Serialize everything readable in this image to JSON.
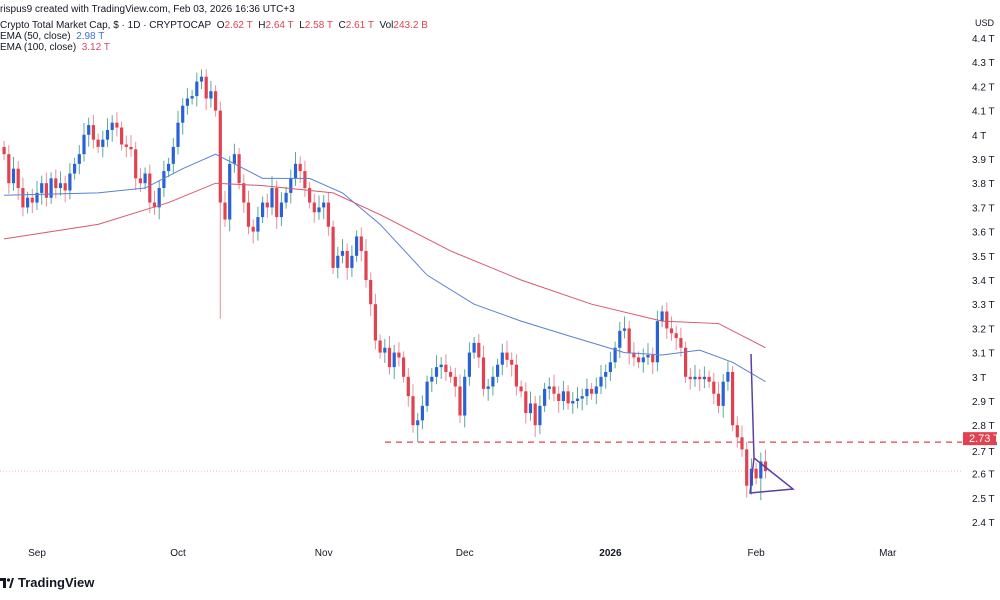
{
  "header": {
    "created": "rispus9 created with TradingView.com, Feb 03, 2026 16:36 UTC+3",
    "symbol": "Crypto Total Market Cap, $ · 1D · CRYPTOCAP",
    "o_label": "O",
    "o": "2.62 T",
    "h_label": "H",
    "h": "2.64 T",
    "l_label": "L",
    "l": "2.58 T",
    "c_label": "C",
    "c": "2.61 T",
    "vol_label": "Vol",
    "vol": "243.2 B",
    "ema50_label": "EMA (50, close)",
    "ema50": "2.98 T",
    "ema100_label": "EMA (100, close)",
    "ema100": "3.12 T"
  },
  "axis": {
    "currency": "USD",
    "y_ticks": [
      "4.4 T",
      "4.3 T",
      "4.2 T",
      "4.1 T",
      "4 T",
      "3.9 T",
      "3.8 T",
      "3.7 T",
      "3.6 T",
      "3.5 T",
      "3.4 T",
      "3.3 T",
      "3.2 T",
      "3.1 T",
      "3 T",
      "2.9 T",
      "2.8 T",
      "2.7 T",
      "2.6 T",
      "2.5 T",
      "2.4 T"
    ],
    "y_values": [
      4.4,
      4.3,
      4.2,
      4.1,
      4.0,
      3.9,
      3.8,
      3.7,
      3.6,
      3.5,
      3.4,
      3.3,
      3.2,
      3.1,
      3.0,
      2.9,
      2.8,
      2.7,
      2.6,
      2.5,
      2.4
    ],
    "x_ticks": [
      {
        "label": "Sep",
        "index": 7,
        "bold": false
      },
      {
        "label": "Oct",
        "index": 37,
        "bold": false
      },
      {
        "label": "Nov",
        "index": 68,
        "bold": false
      },
      {
        "label": "Dec",
        "index": 98,
        "bold": false
      },
      {
        "label": "2026",
        "index": 129,
        "bold": true
      },
      {
        "label": "Feb",
        "index": 160,
        "bold": false
      },
      {
        "label": "Mar",
        "index": 188,
        "bold": false
      }
    ]
  },
  "chart_data": {
    "type": "candlestick",
    "unit": "T USD",
    "ylim": [
      2.4,
      4.4
    ],
    "closes": [
      3.92,
      3.8,
      3.86,
      3.78,
      3.7,
      3.74,
      3.72,
      3.76,
      3.8,
      3.74,
      3.82,
      3.78,
      3.8,
      3.77,
      3.84,
      3.88,
      3.92,
      4.0,
      4.04,
      3.98,
      3.95,
      3.98,
      4.02,
      4.05,
      4.03,
      3.96,
      3.95,
      3.94,
      3.82,
      3.8,
      3.84,
      3.72,
      3.7,
      3.78,
      3.85,
      3.88,
      3.95,
      4.05,
      4.12,
      4.15,
      4.16,
      4.22,
      4.24,
      4.15,
      4.18,
      4.1,
      3.72,
      3.65,
      3.88,
      3.92,
      3.8,
      3.72,
      3.62,
      3.6,
      3.66,
      3.72,
      3.7,
      3.78,
      3.66,
      3.72,
      3.76,
      3.82,
      3.88,
      3.85,
      3.78,
      3.72,
      3.68,
      3.7,
      3.72,
      3.62,
      3.45,
      3.5,
      3.52,
      3.45,
      3.5,
      3.58,
      3.52,
      3.4,
      3.3,
      3.15,
      3.1,
      3.12,
      3.04,
      3.1,
      3.08,
      3.0,
      2.92,
      2.8,
      2.82,
      2.88,
      2.98,
      3.0,
      3.04,
      3.05,
      3.02,
      3.0,
      2.96,
      2.84,
      3.0,
      3.1,
      3.14,
      3.08,
      2.95,
      2.96,
      3.0,
      3.05,
      3.1,
      3.07,
      3.05,
      2.96,
      2.94,
      2.85,
      2.89,
      2.8,
      2.88,
      2.95,
      2.96,
      2.93,
      2.9,
      2.94,
      2.89,
      2.9,
      2.91,
      2.92,
      2.95,
      2.93,
      2.96,
      3.0,
      3.02,
      3.06,
      3.12,
      3.19,
      3.2,
      3.1,
      3.08,
      3.06,
      3.08,
      3.09,
      3.06,
      3.23,
      3.27,
      3.2,
      3.18,
      3.16,
      3.12,
      3.0,
      2.99,
      3.0,
      2.99,
      3.0,
      2.98,
      2.93,
      2.88,
      2.98,
      3.02,
      2.8,
      2.75,
      2.7,
      2.55,
      2.62,
      2.58,
      2.65,
      2.61
    ],
    "first_open": 3.95,
    "notable_wicks": [
      {
        "index": 42,
        "high": 4.27
      },
      {
        "index": 46,
        "low": 3.24
      },
      {
        "index": 88,
        "low": 2.73
      },
      {
        "index": 161,
        "low": 2.49
      }
    ],
    "series": [
      {
        "name": "EMA (50, close)",
        "color": "#5b7fd6",
        "points": [
          [
            0,
            3.75
          ],
          [
            20,
            3.76
          ],
          [
            30,
            3.78
          ],
          [
            38,
            3.86
          ],
          [
            45,
            3.92
          ],
          [
            55,
            3.82
          ],
          [
            65,
            3.82
          ],
          [
            72,
            3.76
          ],
          [
            80,
            3.63
          ],
          [
            90,
            3.42
          ],
          [
            100,
            3.3
          ],
          [
            110,
            3.23
          ],
          [
            120,
            3.17
          ],
          [
            132,
            3.1
          ],
          [
            140,
            3.09
          ],
          [
            148,
            3.11
          ],
          [
            155,
            3.06
          ],
          [
            162,
            2.98
          ]
        ]
      },
      {
        "name": "EMA (100, close)",
        "color": "#d9576e",
        "points": [
          [
            0,
            3.57
          ],
          [
            20,
            3.63
          ],
          [
            35,
            3.72
          ],
          [
            45,
            3.8
          ],
          [
            55,
            3.79
          ],
          [
            70,
            3.76
          ],
          [
            80,
            3.67
          ],
          [
            95,
            3.52
          ],
          [
            110,
            3.4
          ],
          [
            125,
            3.3
          ],
          [
            140,
            3.23
          ],
          [
            152,
            3.22
          ],
          [
            162,
            3.12
          ]
        ]
      }
    ],
    "support_level": {
      "value": 2.73,
      "label": "2.73 T",
      "color": "#e0434f"
    },
    "last_price": 2.61,
    "colors": {
      "up": "#2962d6",
      "down": "#e0434f",
      "up_wick": "#5aa8a0",
      "down_wick": "#e8909a"
    }
  },
  "footer": {
    "logo_text": "TradingView"
  }
}
